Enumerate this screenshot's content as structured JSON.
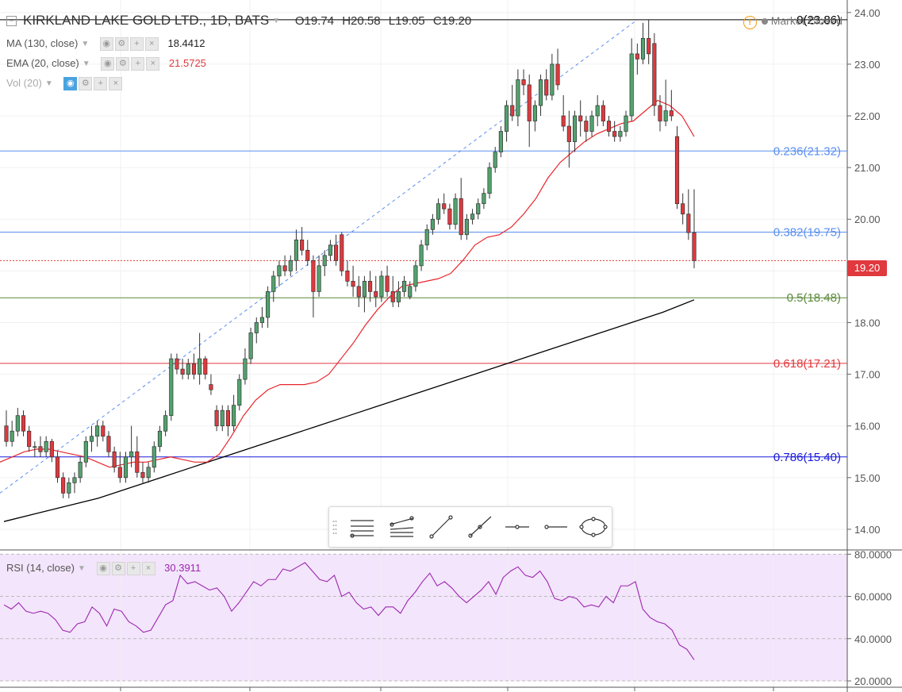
{
  "header": {
    "symbol": "KIRKLAND LAKE GOLD LTD., 1D, BATS",
    "open": "O19.74",
    "high": "H20.58",
    "low": "L19.05",
    "close": "C19.20",
    "market_status": "Market Closed"
  },
  "indicators": {
    "ma_label": "MA (130, close)",
    "ma_value": "18.4412",
    "ema_label": "EMA (20, close)",
    "ema_value": "21.5725",
    "vol_label": "Vol (20)",
    "rsi_label": "RSI (14, close)",
    "rsi_value": "30.3911"
  },
  "last_price_tag": "19.20",
  "colors": {
    "up": "#53a26e",
    "down": "#e0393e",
    "ema": "#e8262b",
    "ma": "#000000",
    "rsi": "#9c27b0",
    "rsi_band": "#f3e5fb",
    "fib0": "#000000",
    "fib236": "#5b8ff0",
    "fib382": "#5b8ff0",
    "fib5": "#5a8a3a",
    "fib618": "#e0393e",
    "fib786": "#1a1adb"
  },
  "toolbar_icons": [
    "fib-retracement-icon",
    "fib-channel-icon",
    "trend-line-icon",
    "ray-icon",
    "extended-line-icon",
    "horizontal-line-icon",
    "ellipse-icon"
  ],
  "chart_data": {
    "type": "candlestick",
    "price_axis": {
      "ticks": [
        "14.00",
        "15.00",
        "16.00",
        "17.00",
        "18.00",
        "19.00",
        "20.00",
        "21.00",
        "22.00",
        "23.00",
        "24.00"
      ],
      "range": [
        13.6,
        24.15
      ]
    },
    "rsi_axis": {
      "ticks": [
        "20.0000",
        "40.0000",
        "60.0000",
        "80.0000"
      ],
      "range": [
        17,
        82
      ]
    },
    "fib_levels": [
      {
        "label": "0(23.86)",
        "value": 23.86,
        "color": "#000000"
      },
      {
        "label": "0.236(21.32)",
        "value": 21.32,
        "color": "#5b8ff0"
      },
      {
        "label": "0.382(19.75)",
        "value": 19.75,
        "color": "#5b8ff0"
      },
      {
        "label": "0.5(18.48)",
        "value": 18.48,
        "color": "#5a8a3a"
      },
      {
        "label": "0.618(17.21)",
        "value": 17.21,
        "color": "#e0393e"
      },
      {
        "label": "0.786(15.40)",
        "value": 15.4,
        "color": "#1a1adb"
      }
    ],
    "candles": [
      [
        16.0,
        16.3,
        15.6,
        15.7
      ],
      [
        15.7,
        16.1,
        15.6,
        15.9
      ],
      [
        15.9,
        16.35,
        15.8,
        16.2
      ],
      [
        16.2,
        16.3,
        15.8,
        15.9
      ],
      [
        15.9,
        16.0,
        15.5,
        15.6
      ],
      [
        15.6,
        15.7,
        15.4,
        15.6
      ],
      [
        15.6,
        15.8,
        15.4,
        15.5
      ],
      [
        15.5,
        15.8,
        15.4,
        15.7
      ],
      [
        15.7,
        15.75,
        15.3,
        15.4
      ],
      [
        15.4,
        15.5,
        14.9,
        15.0
      ],
      [
        15.0,
        15.1,
        14.6,
        14.7
      ],
      [
        14.7,
        15.0,
        14.6,
        14.9
      ],
      [
        14.9,
        15.1,
        14.7,
        15.0
      ],
      [
        15.0,
        15.4,
        14.9,
        15.3
      ],
      [
        15.3,
        15.8,
        15.2,
        15.7
      ],
      [
        15.7,
        16.0,
        15.5,
        15.8
      ],
      [
        15.8,
        16.1,
        15.6,
        16.0
      ],
      [
        16.0,
        16.1,
        15.7,
        15.8
      ],
      [
        15.8,
        15.9,
        15.4,
        15.5
      ],
      [
        15.5,
        15.6,
        15.1,
        15.2
      ],
      [
        15.2,
        15.5,
        14.9,
        15.0
      ],
      [
        15.0,
        15.5,
        14.9,
        15.4
      ],
      [
        15.4,
        16.0,
        15.2,
        15.5
      ],
      [
        15.5,
        15.8,
        15.0,
        15.1
      ],
      [
        15.1,
        15.3,
        14.9,
        15.0
      ],
      [
        15.0,
        15.3,
        14.9,
        15.2
      ],
      [
        15.2,
        15.7,
        15.1,
        15.6
      ],
      [
        15.6,
        16.0,
        15.5,
        15.9
      ],
      [
        15.9,
        16.3,
        15.8,
        16.2
      ],
      [
        16.2,
        17.4,
        16.1,
        17.3
      ],
      [
        17.3,
        17.4,
        17.0,
        17.1
      ],
      [
        17.1,
        17.3,
        16.9,
        17.0
      ],
      [
        17.0,
        17.3,
        16.9,
        17.2
      ],
      [
        17.2,
        17.4,
        16.9,
        17.0
      ],
      [
        17.0,
        17.8,
        16.8,
        17.3
      ],
      [
        17.3,
        17.35,
        16.9,
        17.0
      ],
      [
        16.8,
        17.0,
        16.6,
        16.7
      ],
      [
        16.3,
        16.4,
        15.9,
        16.0
      ],
      [
        16.0,
        16.4,
        15.9,
        16.3
      ],
      [
        16.3,
        16.4,
        15.8,
        16.0
      ],
      [
        16.0,
        16.6,
        15.9,
        16.4
      ],
      [
        16.4,
        17.0,
        16.3,
        16.9
      ],
      [
        16.9,
        17.5,
        16.8,
        17.3
      ],
      [
        17.3,
        17.9,
        17.2,
        17.8
      ],
      [
        17.8,
        18.1,
        17.6,
        18.0
      ],
      [
        18.0,
        18.3,
        17.9,
        18.1
      ],
      [
        18.1,
        18.7,
        17.9,
        18.6
      ],
      [
        18.6,
        19.0,
        18.4,
        18.9
      ],
      [
        18.9,
        19.2,
        18.7,
        19.1
      ],
      [
        19.1,
        19.3,
        18.9,
        19.0
      ],
      [
        19.0,
        19.3,
        18.9,
        19.2
      ],
      [
        19.2,
        19.8,
        19.0,
        19.6
      ],
      [
        19.6,
        19.85,
        19.3,
        19.4
      ],
      [
        19.4,
        19.6,
        19.1,
        19.2
      ],
      [
        19.2,
        19.3,
        18.1,
        18.6
      ],
      [
        18.6,
        19.3,
        18.5,
        19.1
      ],
      [
        19.1,
        19.4,
        18.9,
        19.3
      ],
      [
        19.3,
        19.6,
        19.2,
        19.5
      ],
      [
        19.5,
        19.7,
        19.1,
        19.2
      ],
      [
        19.7,
        19.75,
        18.9,
        19.0
      ],
      [
        19.0,
        19.2,
        18.7,
        18.8
      ],
      [
        18.8,
        19.1,
        18.5,
        18.7
      ],
      [
        18.7,
        18.9,
        18.3,
        18.5
      ],
      [
        18.5,
        18.9,
        18.2,
        18.8
      ],
      [
        18.8,
        19.0,
        18.4,
        18.6
      ],
      [
        18.6,
        18.9,
        18.3,
        18.5
      ],
      [
        18.5,
        19.0,
        18.4,
        18.9
      ],
      [
        18.9,
        19.1,
        18.5,
        18.6
      ],
      [
        18.6,
        18.9,
        18.3,
        18.4
      ],
      [
        18.4,
        18.8,
        18.3,
        18.6
      ],
      [
        18.6,
        18.9,
        18.5,
        18.8
      ],
      [
        18.5,
        18.8,
        18.45,
        18.7
      ],
      [
        18.7,
        19.2,
        18.6,
        19.1
      ],
      [
        19.1,
        19.6,
        19.0,
        19.5
      ],
      [
        19.5,
        19.9,
        19.4,
        19.8
      ],
      [
        19.8,
        20.1,
        19.7,
        20.0
      ],
      [
        20.0,
        20.4,
        19.9,
        20.3
      ],
      [
        20.3,
        20.5,
        20.1,
        20.2
      ],
      [
        20.2,
        20.3,
        19.8,
        19.9
      ],
      [
        19.9,
        20.5,
        19.8,
        20.4
      ],
      [
        20.4,
        20.8,
        19.6,
        19.7
      ],
      [
        19.7,
        20.1,
        19.6,
        20.0
      ],
      [
        20.0,
        20.2,
        19.9,
        20.1
      ],
      [
        20.1,
        20.4,
        20.0,
        20.3
      ],
      [
        20.3,
        20.6,
        20.2,
        20.5
      ],
      [
        20.5,
        21.1,
        20.4,
        21.0
      ],
      [
        21.0,
        21.4,
        20.9,
        21.3
      ],
      [
        21.3,
        21.8,
        21.2,
        21.7
      ],
      [
        21.7,
        22.3,
        21.5,
        22.2
      ],
      [
        22.2,
        22.6,
        21.9,
        22.0
      ],
      [
        22.0,
        22.9,
        21.8,
        22.7
      ],
      [
        22.7,
        22.9,
        22.4,
        22.6
      ],
      [
        22.6,
        22.8,
        21.4,
        21.9
      ],
      [
        21.9,
        22.3,
        21.7,
        22.2
      ],
      [
        22.2,
        22.8,
        22.0,
        22.7
      ],
      [
        22.7,
        22.9,
        22.3,
        22.4
      ],
      [
        22.4,
        23.2,
        22.3,
        23.0
      ],
      [
        23.0,
        23.3,
        22.5,
        22.6
      ],
      [
        22.0,
        22.4,
        21.7,
        21.8
      ],
      [
        21.8,
        22.1,
        21.0,
        21.5
      ],
      [
        21.5,
        22.1,
        21.3,
        22.0
      ],
      [
        22.0,
        22.3,
        21.6,
        21.9
      ],
      [
        21.9,
        22.0,
        21.5,
        21.7
      ],
      [
        21.7,
        22.1,
        21.6,
        22.0
      ],
      [
        22.0,
        22.4,
        21.8,
        22.2
      ],
      [
        22.2,
        22.3,
        21.8,
        21.9
      ],
      [
        21.9,
        22.0,
        21.6,
        21.7
      ],
      [
        21.7,
        21.9,
        21.5,
        21.6
      ],
      [
        21.6,
        21.8,
        21.5,
        21.7
      ],
      [
        21.7,
        22.1,
        21.6,
        22.0
      ],
      [
        22.0,
        23.5,
        21.9,
        23.2
      ],
      [
        23.2,
        23.4,
        22.8,
        23.1
      ],
      [
        23.1,
        23.8,
        23.0,
        23.5
      ],
      [
        23.5,
        23.86,
        23.0,
        23.2
      ],
      [
        23.4,
        23.6,
        22.0,
        22.2
      ],
      [
        22.2,
        22.4,
        21.7,
        21.9
      ],
      [
        21.9,
        22.7,
        21.8,
        22.1
      ],
      [
        22.1,
        22.5,
        21.9,
        22.0
      ],
      [
        21.6,
        21.8,
        20.2,
        20.3
      ],
      [
        20.3,
        20.5,
        19.9,
        20.1
      ],
      [
        20.1,
        20.58,
        19.6,
        19.74
      ],
      [
        19.74,
        20.58,
        19.05,
        19.2
      ]
    ],
    "ema20": [
      15.3,
      15.4,
      15.5,
      15.55,
      15.55,
      15.5,
      15.45,
      15.4,
      15.3,
      15.2,
      15.25,
      15.3,
      15.3,
      15.35,
      15.4,
      15.35,
      15.3,
      15.3,
      15.45,
      15.8,
      16.2,
      16.5,
      16.7,
      16.8,
      16.8,
      16.8,
      16.85,
      17.0,
      17.3,
      17.6,
      17.95,
      18.25,
      18.5,
      18.7,
      18.75,
      18.8,
      18.85,
      18.95,
      19.2,
      19.5,
      19.65,
      19.7,
      19.85,
      20.1,
      20.4,
      20.8,
      21.1,
      21.3,
      21.5,
      21.65,
      21.75,
      21.85,
      21.9,
      22.1,
      22.3,
      22.2,
      22.0,
      21.6
    ],
    "ma130": [
      14.15,
      14.3,
      14.45,
      14.6,
      14.8,
      15.0,
      15.2,
      15.4,
      15.6,
      15.8,
      16.0,
      16.2,
      16.4,
      16.6,
      16.8,
      17.0,
      17.2,
      17.4,
      17.6,
      17.8,
      18.0,
      18.2,
      18.44
    ],
    "rsi": [
      56,
      54,
      57,
      53,
      52,
      53,
      52,
      49,
      44,
      43,
      47,
      48,
      55,
      52,
      46,
      54,
      53,
      48,
      46,
      43,
      44,
      50,
      56,
      58,
      70,
      66,
      67,
      65,
      63,
      64,
      60,
      53,
      57,
      62,
      67,
      65,
      68,
      68,
      73,
      72,
      74,
      76,
      72,
      68,
      67,
      70,
      60,
      62,
      57,
      54,
      55,
      51,
      55,
      55,
      52,
      58,
      62,
      67,
      71,
      65,
      67,
      64,
      60,
      57,
      60,
      63,
      67,
      61,
      69,
      72,
      74,
      70,
      69,
      72,
      67,
      59,
      58,
      60,
      59,
      55,
      56,
      55,
      60,
      57,
      65,
      65,
      67,
      54,
      50,
      48,
      47,
      44,
      37,
      35,
      30
    ]
  }
}
